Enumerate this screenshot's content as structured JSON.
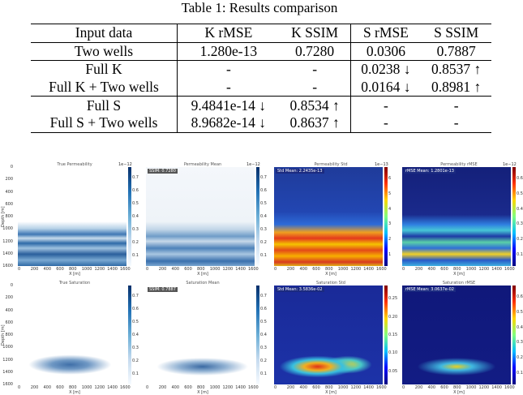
{
  "caption": "Table 1: Results comparison",
  "table": {
    "headers": [
      "Input data",
      "K rMSE",
      "K SSIM",
      "S rMSE",
      "S SSIM"
    ],
    "rows": [
      [
        "Two wells",
        "1.280e-13",
        "0.7280",
        "0.0306",
        "0.7887"
      ],
      [
        "Full K",
        "-",
        "-",
        "0.0238 ↓",
        "0.8537 ↑"
      ],
      [
        "Full K + Two wells",
        "-",
        "-",
        "0.0164 ↓",
        "0.8981 ↑"
      ],
      [
        "Full S",
        "9.4841e-14 ↓",
        "0.8534 ↑",
        "-",
        "-"
      ],
      [
        "Full S + Two wells",
        "8.9682e-14 ↓",
        "0.8637 ↑",
        "-",
        "-"
      ]
    ]
  },
  "figure": {
    "row1": [
      {
        "title": "True Permeability",
        "badge": "",
        "exp": "1e−12",
        "ticks": [
          "0.7",
          "0.6",
          "0.5",
          "0.4",
          "0.3",
          "0.2",
          "0.1"
        ]
      },
      {
        "title": "Permeability Mean",
        "badge": "SSIM: 0.7280",
        "exp": "1e−12",
        "ticks": [
          "0.7",
          "0.6",
          "0.5",
          "0.4",
          "0.3",
          "0.2",
          "0.1"
        ]
      },
      {
        "title": "Permeability Std",
        "badge": "Std Mean: 2.2435e-13",
        "exp": "1e−13",
        "ticks": [
          "6",
          "5",
          "4",
          "3",
          "2",
          "1"
        ]
      },
      {
        "title": "Permeability rMSE",
        "badge": "rMSE Mean: 1.2801e-13",
        "exp": "1e−12",
        "ticks": [
          "0.6",
          "0.5",
          "0.4",
          "0.3",
          "0.2",
          "0.1"
        ]
      }
    ],
    "row2": [
      {
        "title": "True Saturation",
        "badge": "",
        "exp": "",
        "ticks": [
          "0.7",
          "0.6",
          "0.5",
          "0.4",
          "0.3",
          "0.2",
          "0.1"
        ]
      },
      {
        "title": "Saturation Mean",
        "badge": "SSIM: 0.7887",
        "exp": "",
        "ticks": [
          "0.7",
          "0.6",
          "0.5",
          "0.4",
          "0.3",
          "0.2",
          "0.1"
        ]
      },
      {
        "title": "Saturation Std",
        "badge": "Std Mean: 3.5836e-02",
        "exp": "",
        "ticks": [
          "0.25",
          "0.20",
          "0.15",
          "0.10",
          "0.05"
        ]
      },
      {
        "title": "Saturation rMSE",
        "badge": "rMSE Mean: 3.0637e-02",
        "exp": "",
        "ticks": [
          "0.6",
          "0.5",
          "0.4",
          "0.3",
          "0.2",
          "0.1"
        ]
      }
    ],
    "yticks": [
      "0",
      "200",
      "400",
      "600",
      "800",
      "1000",
      "1200",
      "1400",
      "1600"
    ],
    "xticks": [
      "0",
      "200",
      "400",
      "600",
      "800",
      "1000",
      "1200",
      "1400",
      "1600"
    ],
    "ylabel": "Depth [m]",
    "xlabel": "X [m]"
  }
}
